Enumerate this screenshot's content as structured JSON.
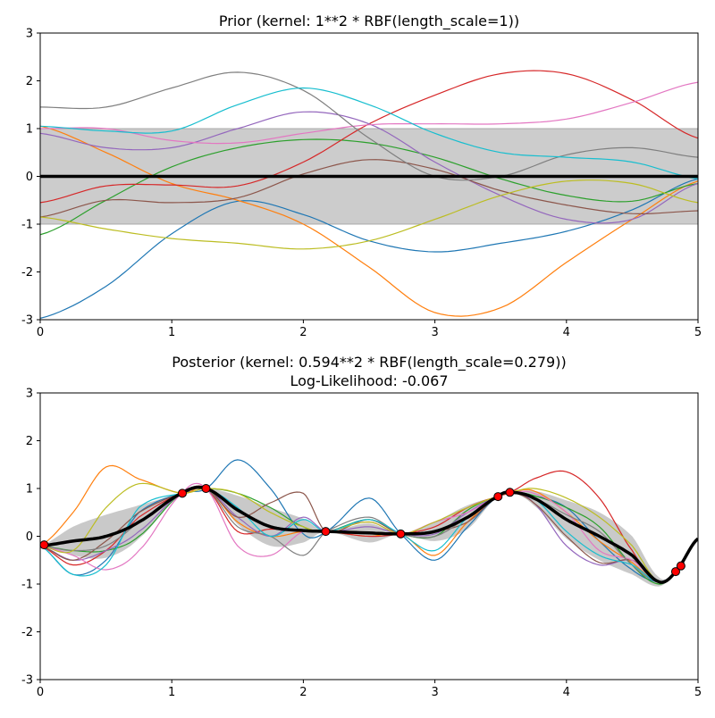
{
  "chart_data": [
    {
      "type": "line",
      "title": "Prior (kernel:  1**2 * RBF(length_scale=1))",
      "xlim": [
        0,
        5
      ],
      "ylim": [
        -3,
        3
      ],
      "xticks": [
        "0",
        "1",
        "2",
        "3",
        "4",
        "5"
      ],
      "yticks": [
        "-3",
        "-2",
        "-1",
        "0",
        "1",
        "2",
        "3"
      ],
      "grid": false,
      "x": [
        0,
        0.5,
        1,
        1.5,
        2,
        2.5,
        3,
        3.5,
        4,
        4.5,
        5
      ],
      "mean": [
        0,
        0,
        0,
        0,
        0,
        0,
        0,
        0,
        0,
        0,
        0
      ],
      "std": [
        1,
        1,
        1,
        1,
        1,
        1,
        1,
        1,
        1,
        1,
        1
      ],
      "band_color": "#cccccc",
      "series": [
        {
          "color": "#1f77b4",
          "values": [
            -2.97,
            -2.3,
            -1.2,
            -0.52,
            -0.8,
            -1.35,
            -1.58,
            -1.4,
            -1.15,
            -0.7,
            -0.05
          ]
        },
        {
          "color": "#ff7f0e",
          "values": [
            1.05,
            0.5,
            -0.15,
            -0.5,
            -1.0,
            -1.9,
            -2.85,
            -2.75,
            -1.8,
            -0.9,
            -0.1
          ]
        },
        {
          "color": "#2ca02c",
          "values": [
            -1.22,
            -0.5,
            0.2,
            0.6,
            0.77,
            0.7,
            0.4,
            -0.05,
            -0.4,
            -0.52,
            -0.15
          ]
        },
        {
          "color": "#d62728",
          "values": [
            -0.55,
            -0.2,
            -0.18,
            -0.2,
            0.3,
            1.1,
            1.7,
            2.15,
            2.15,
            1.6,
            0.8
          ]
        },
        {
          "color": "#9467bd",
          "values": [
            0.9,
            0.6,
            0.6,
            1.0,
            1.35,
            1.1,
            0.3,
            -0.4,
            -0.9,
            -0.9,
            -0.15
          ]
        },
        {
          "color": "#8c564b",
          "values": [
            -0.85,
            -0.5,
            -0.55,
            -0.45,
            0.05,
            0.35,
            0.15,
            -0.3,
            -0.6,
            -0.78,
            -0.72
          ]
        },
        {
          "color": "#e377c2",
          "values": [
            1.0,
            1.0,
            0.75,
            0.7,
            0.9,
            1.08,
            1.1,
            1.1,
            1.2,
            1.55,
            1.97
          ]
        },
        {
          "color": "#7f7f7f",
          "values": [
            1.45,
            1.45,
            1.85,
            2.18,
            1.8,
            0.8,
            0.0,
            0.0,
            0.45,
            0.6,
            0.4
          ]
        },
        {
          "color": "#bcbd22",
          "values": [
            -0.85,
            -1.1,
            -1.3,
            -1.4,
            -1.52,
            -1.35,
            -0.9,
            -0.4,
            -0.1,
            -0.15,
            -0.55
          ]
        },
        {
          "color": "#17becf",
          "values": [
            1.05,
            0.95,
            0.95,
            1.5,
            1.85,
            1.5,
            0.9,
            0.5,
            0.4,
            0.3,
            -0.05
          ]
        }
      ]
    },
    {
      "type": "line",
      "title": "Posterior (kernel: 0.594**2 * RBF(length_scale=0.279))",
      "subtitle": "Log-Likelihood: -0.067",
      "xlim": [
        0,
        5
      ],
      "ylim": [
        -3,
        3
      ],
      "xticks": [
        "0",
        "1",
        "2",
        "3",
        "4",
        "5"
      ],
      "yticks": [
        "-3",
        "-2",
        "-1",
        "0",
        "1",
        "2",
        "3"
      ],
      "grid": false,
      "x": [
        0,
        0.25,
        0.5,
        0.75,
        1.08,
        1.26,
        1.5,
        1.75,
        2.0,
        2.17,
        2.5,
        2.74,
        3.0,
        3.25,
        3.48,
        3.57,
        3.75,
        4.0,
        4.25,
        4.5,
        4.7,
        4.83,
        5.0
      ],
      "mean": [
        -0.2,
        -0.1,
        0.0,
        0.3,
        0.9,
        1.0,
        0.55,
        0.2,
        0.12,
        0.1,
        0.07,
        0.05,
        0.1,
        0.4,
        0.83,
        0.92,
        0.8,
        0.35,
        0.0,
        -0.4,
        -0.95,
        -0.74,
        -0.05
      ],
      "std": [
        0,
        0.3,
        0.45,
        0.35,
        0,
        0,
        0.3,
        0.4,
        0.25,
        0,
        0.2,
        0,
        0.2,
        0.25,
        0,
        0,
        0.15,
        0.4,
        0.5,
        0.4,
        0.1,
        0,
        0
      ],
      "band_color": "#bbbbbb",
      "training_points": {
        "x": [
          0.03,
          1.08,
          1.26,
          2.17,
          2.74,
          3.48,
          3.57,
          4.83,
          4.87
        ],
        "y": [
          -0.18,
          0.9,
          1.0,
          0.1,
          0.05,
          0.83,
          0.92,
          -0.74,
          -0.62
        ],
        "color": "#ff0000"
      },
      "series": [
        {
          "color": "#1f77b4",
          "values": [
            -0.2,
            -0.8,
            -0.5,
            0.5,
            0.9,
            1.0,
            1.6,
            1.0,
            0.05,
            0.1,
            0.8,
            0.05,
            -0.5,
            0.2,
            0.83,
            0.92,
            0.85,
            0.6,
            -0.1,
            -0.7,
            -0.95,
            -0.74,
            -0.05
          ]
        },
        {
          "color": "#ff7f0e",
          "values": [
            -0.2,
            0.5,
            1.45,
            1.2,
            0.9,
            1.0,
            0.3,
            0.0,
            0.1,
            0.1,
            0.0,
            0.05,
            -0.4,
            0.3,
            0.83,
            0.92,
            0.95,
            0.5,
            -0.1,
            -0.55,
            -0.95,
            -0.74,
            -0.05
          ]
        },
        {
          "color": "#2ca02c",
          "values": [
            -0.2,
            -0.3,
            -0.3,
            0.0,
            0.9,
            1.0,
            0.9,
            0.6,
            0.2,
            0.1,
            0.35,
            0.05,
            0.0,
            0.55,
            0.83,
            0.92,
            0.85,
            0.6,
            0.2,
            -0.6,
            -1.0,
            -0.74,
            -0.05
          ]
        },
        {
          "color": "#d62728",
          "values": [
            -0.2,
            -0.6,
            -0.3,
            0.4,
            0.9,
            1.0,
            0.1,
            0.15,
            0.1,
            0.1,
            0.0,
            0.05,
            0.2,
            0.6,
            0.83,
            0.92,
            1.2,
            1.35,
            0.8,
            -0.3,
            -0.95,
            -0.74,
            -0.05
          ]
        },
        {
          "color": "#9467bd",
          "values": [
            -0.2,
            -0.5,
            -0.3,
            0.1,
            0.9,
            1.0,
            0.4,
            0.0,
            0.4,
            0.1,
            0.2,
            0.05,
            0.05,
            0.5,
            0.83,
            0.92,
            0.7,
            -0.2,
            -0.6,
            -0.5,
            -0.95,
            -0.74,
            -0.05
          ]
        },
        {
          "color": "#8c564b",
          "values": [
            -0.2,
            -0.5,
            -0.1,
            0.5,
            0.9,
            1.0,
            0.4,
            0.7,
            0.9,
            0.1,
            0.35,
            0.05,
            0.1,
            0.3,
            0.83,
            0.92,
            0.7,
            0.0,
            -0.55,
            -0.5,
            -0.95,
            -0.74,
            -0.05
          ]
        },
        {
          "color": "#e377c2",
          "values": [
            -0.2,
            -0.4,
            -0.7,
            -0.3,
            0.9,
            1.0,
            -0.2,
            -0.4,
            0.1,
            0.1,
            0.3,
            0.05,
            0.3,
            0.5,
            0.83,
            0.92,
            0.9,
            0.5,
            -0.3,
            -0.5,
            -0.95,
            -0.74,
            -0.05
          ]
        },
        {
          "color": "#7f7f7f",
          "values": [
            -0.2,
            -0.3,
            -0.2,
            0.3,
            0.9,
            1.0,
            0.2,
            0.0,
            -0.4,
            0.1,
            0.4,
            0.05,
            0.0,
            0.4,
            0.83,
            0.92,
            0.8,
            0.45,
            0.1,
            -0.6,
            -0.95,
            -0.74,
            -0.05
          ]
        },
        {
          "color": "#bcbd22",
          "values": [
            -0.2,
            -0.3,
            0.6,
            1.1,
            0.9,
            1.0,
            0.9,
            0.5,
            0.2,
            0.1,
            0.3,
            0.05,
            0.3,
            0.6,
            0.83,
            0.92,
            1.0,
            0.8,
            0.4,
            -0.2,
            -0.95,
            -0.74,
            -0.05
          ]
        },
        {
          "color": "#17becf",
          "values": [
            -0.2,
            -0.8,
            -0.6,
            0.6,
            0.9,
            1.0,
            0.6,
            0.0,
            0.35,
            0.1,
            0.35,
            0.05,
            -0.3,
            0.4,
            0.83,
            0.92,
            0.8,
            0.1,
            -0.4,
            -0.6,
            -0.95,
            -0.74,
            -0.05
          ]
        }
      ]
    }
  ]
}
